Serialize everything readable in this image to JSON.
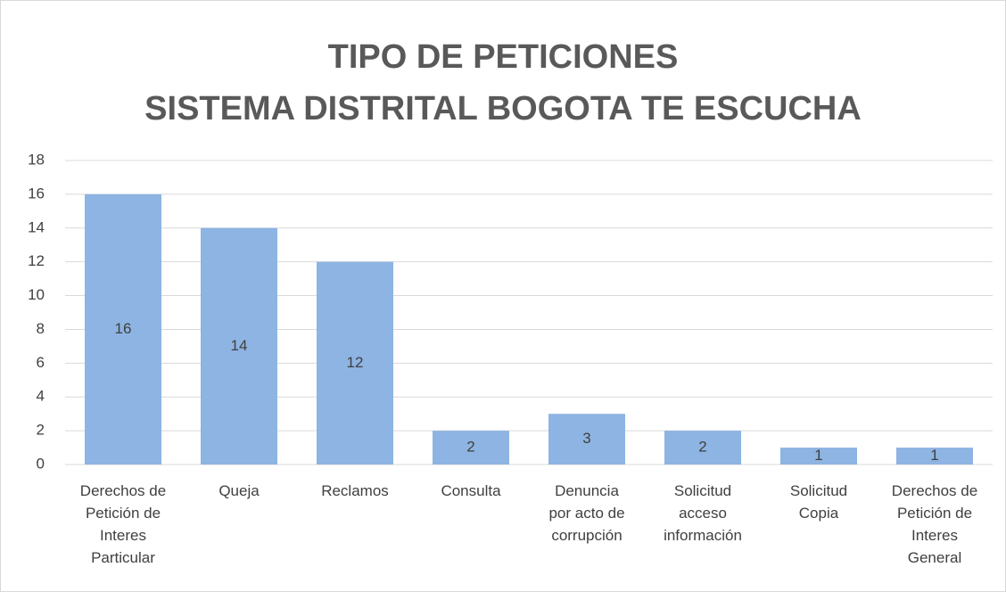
{
  "chart_data": {
    "type": "bar",
    "title": "TIPO DE PETICIONES",
    "subtitle": "SISTEMA DISTRITAL BOGOTA TE ESCUCHA",
    "categories": [
      "Derechos de Petición de Interes Particular",
      "Queja",
      "Reclamos",
      "Consulta",
      "Denuncia por acto de corrupción",
      "Solicitud acceso información",
      "Solicitud Copia",
      "Derechos de Petición de Interes General"
    ],
    "values": [
      16,
      14,
      12,
      2,
      3,
      2,
      1,
      1
    ],
    "color": "#8db4e2",
    "ylim": [
      0,
      18
    ],
    "yticks": [
      0,
      2,
      4,
      6,
      8,
      10,
      12,
      14,
      16,
      18
    ],
    "grid": true
  }
}
